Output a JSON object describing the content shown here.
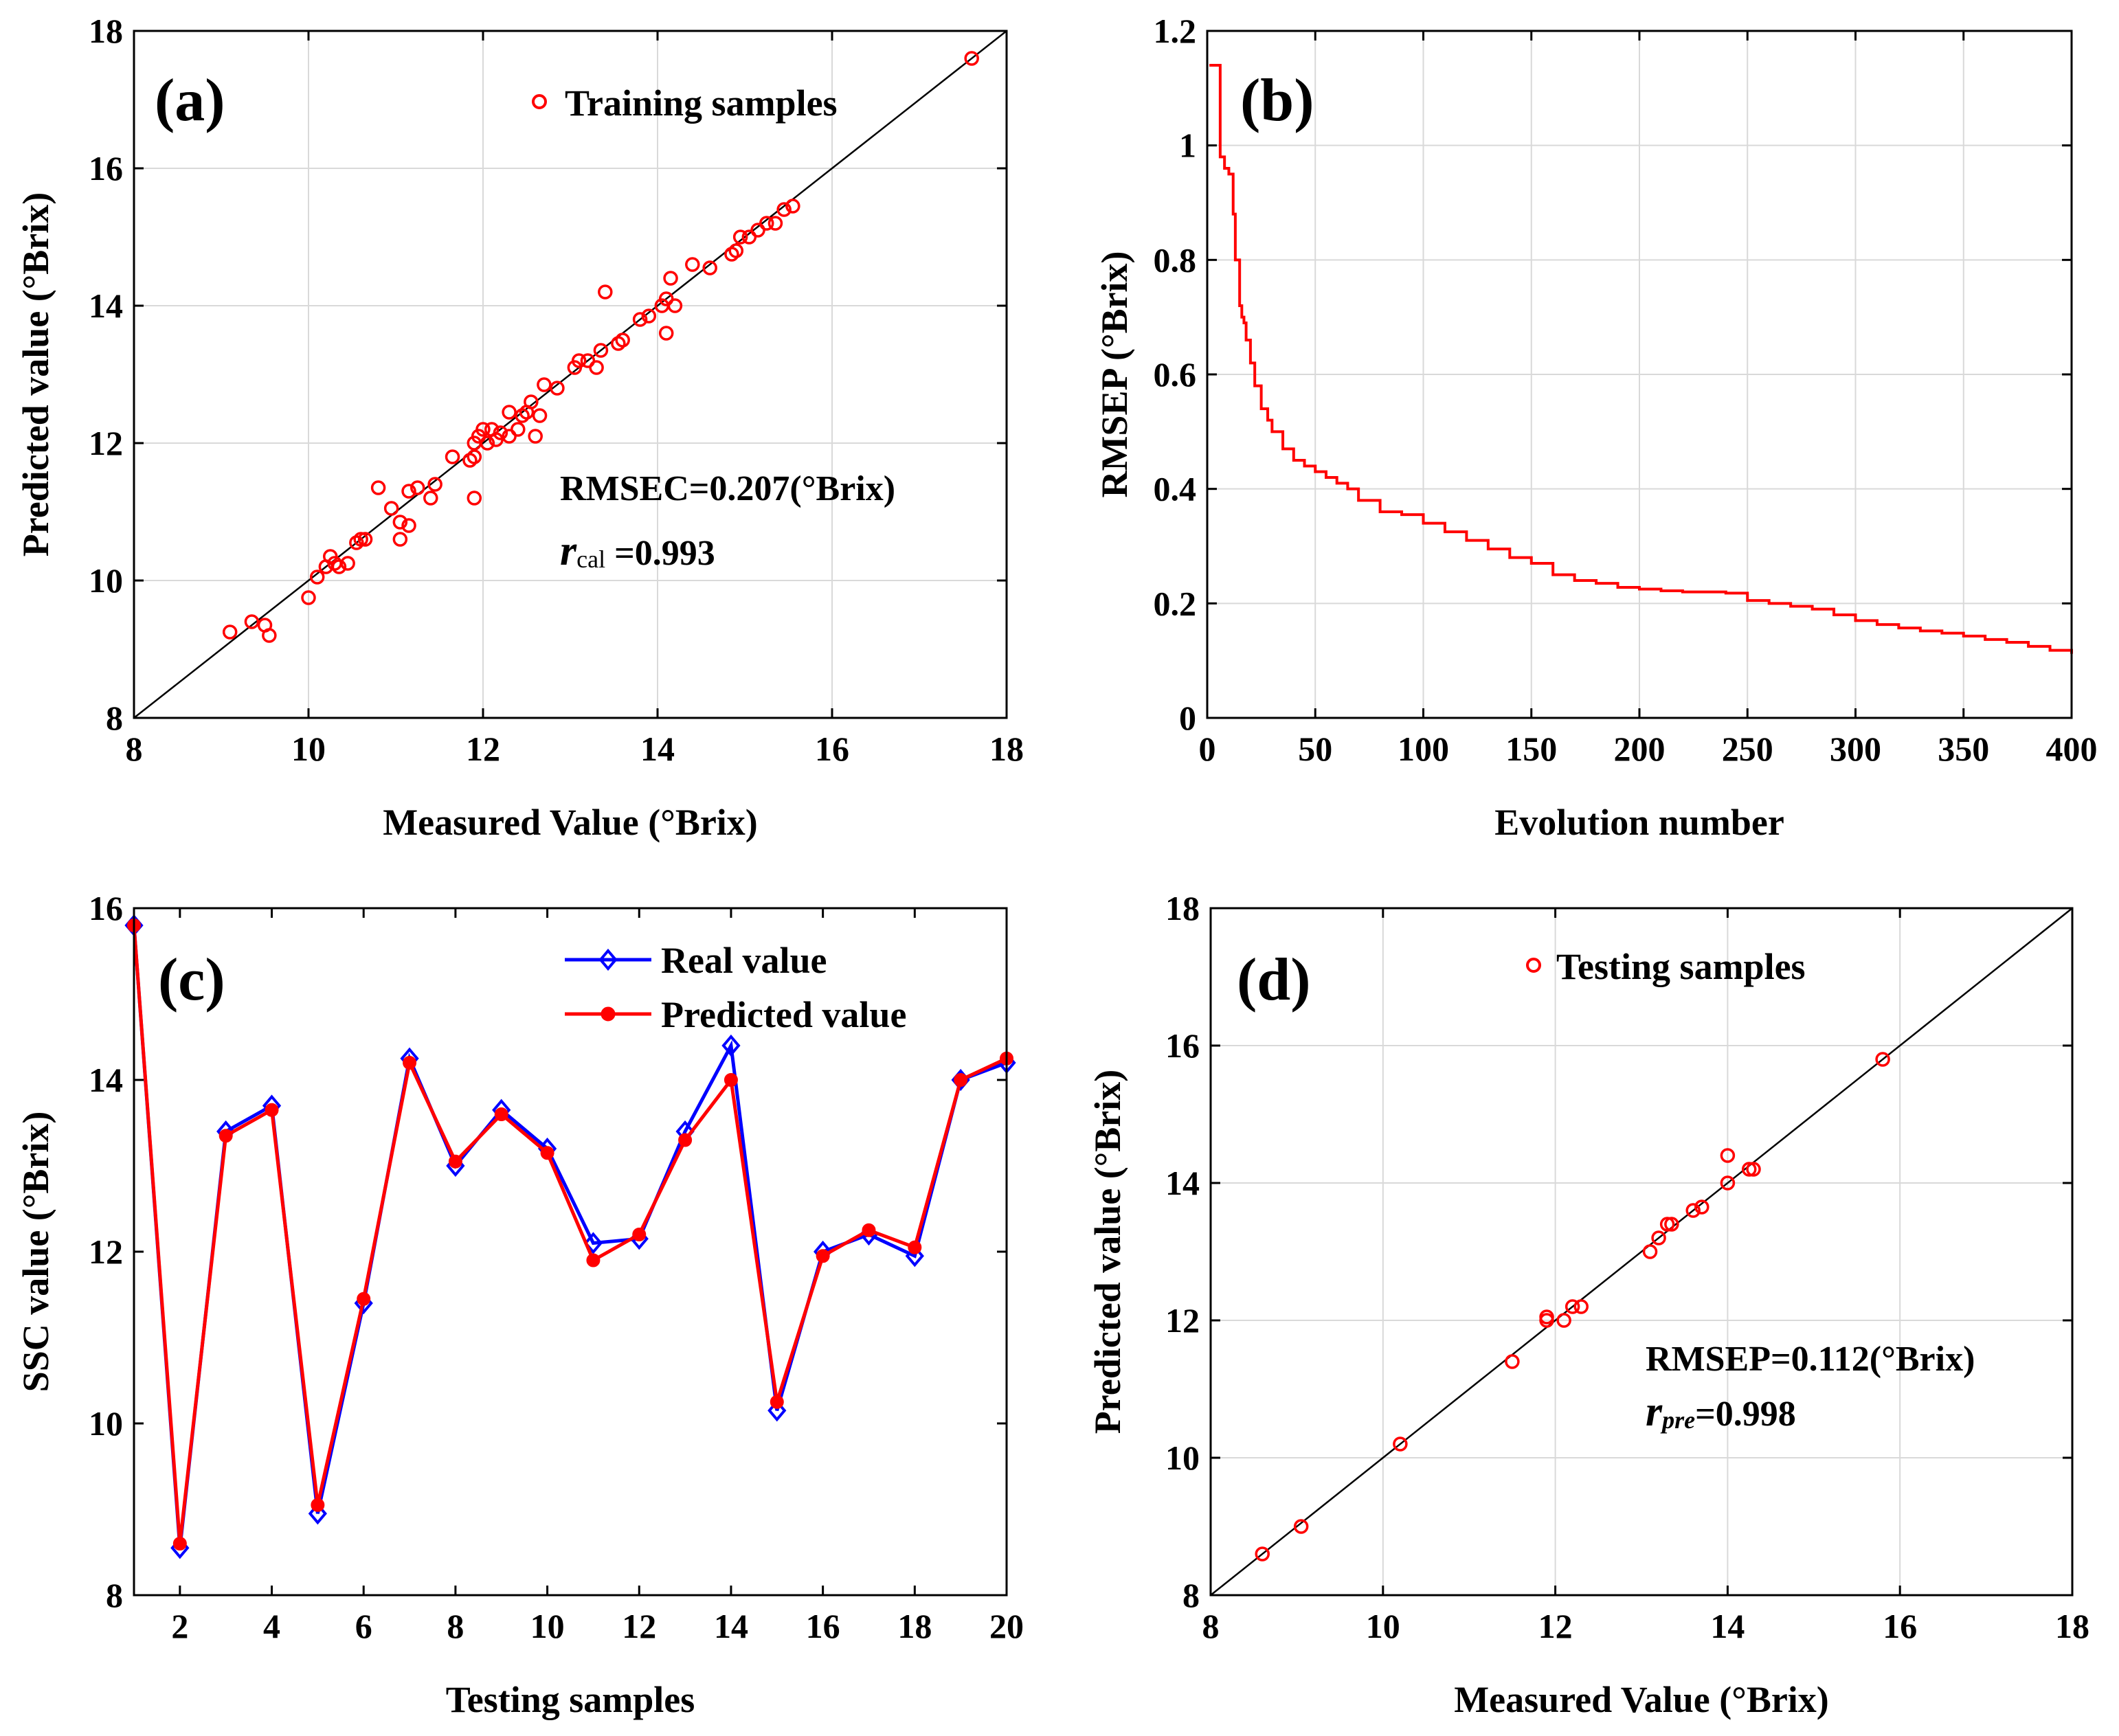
{
  "chart_data": [
    {
      "id": "a",
      "type": "scatter",
      "panel_label": "(a)",
      "xlabel": "Measured Value (°Brix)",
      "ylabel": "Predicted value (°Brix)",
      "xlim": [
        8,
        18
      ],
      "ylim": [
        8,
        18
      ],
      "xticks": [
        8,
        10,
        12,
        14,
        16,
        18
      ],
      "yticks": [
        8,
        10,
        12,
        14,
        16,
        18
      ],
      "grid": true,
      "legend": "Training samples",
      "legend_position": "top-right",
      "annotations": {
        "rmse": "RMSEC=0.207(°Brix)",
        "r_symbol": "r",
        "r_sub": "cal",
        "r_value": " =0.993"
      },
      "reference_line": "y=x",
      "points": [
        [
          9.1,
          9.25
        ],
        [
          9.35,
          9.4
        ],
        [
          9.5,
          9.35
        ],
        [
          9.55,
          9.2
        ],
        [
          10.0,
          9.75
        ],
        [
          10.1,
          10.05
        ],
        [
          10.2,
          10.2
        ],
        [
          10.25,
          10.35
        ],
        [
          10.3,
          10.25
        ],
        [
          10.35,
          10.2
        ],
        [
          10.45,
          10.25
        ],
        [
          10.55,
          10.55
        ],
        [
          10.6,
          10.6
        ],
        [
          10.65,
          10.6
        ],
        [
          10.8,
          11.35
        ],
        [
          10.95,
          11.05
        ],
        [
          11.05,
          10.6
        ],
        [
          11.05,
          10.85
        ],
        [
          11.15,
          10.8
        ],
        [
          11.15,
          11.3
        ],
        [
          11.25,
          11.35
        ],
        [
          11.4,
          11.2
        ],
        [
          11.45,
          11.4
        ],
        [
          11.65,
          11.8
        ],
        [
          11.85,
          11.75
        ],
        [
          11.9,
          11.8
        ],
        [
          11.9,
          12.0
        ],
        [
          11.9,
          11.2
        ],
        [
          11.95,
          12.1
        ],
        [
          12.0,
          12.2
        ],
        [
          12.05,
          12.0
        ],
        [
          12.1,
          12.2
        ],
        [
          12.15,
          12.05
        ],
        [
          12.2,
          12.15
        ],
        [
          12.3,
          12.1
        ],
        [
          12.3,
          12.45
        ],
        [
          12.4,
          12.2
        ],
        [
          12.45,
          12.4
        ],
        [
          12.5,
          12.45
        ],
        [
          12.55,
          12.6
        ],
        [
          12.6,
          12.1
        ],
        [
          12.65,
          12.4
        ],
        [
          12.7,
          12.85
        ],
        [
          12.85,
          12.8
        ],
        [
          13.05,
          13.1
        ],
        [
          13.1,
          13.2
        ],
        [
          13.2,
          13.2
        ],
        [
          13.3,
          13.1
        ],
        [
          13.35,
          13.35
        ],
        [
          13.4,
          14.2
        ],
        [
          13.55,
          13.45
        ],
        [
          13.6,
          13.5
        ],
        [
          13.8,
          13.8
        ],
        [
          13.9,
          13.85
        ],
        [
          14.05,
          14.0
        ],
        [
          14.1,
          13.6
        ],
        [
          14.1,
          14.1
        ],
        [
          14.15,
          14.4
        ],
        [
          14.2,
          14.0
        ],
        [
          14.4,
          14.6
        ],
        [
          14.6,
          14.55
        ],
        [
          14.85,
          14.75
        ],
        [
          14.9,
          14.8
        ],
        [
          14.95,
          15.0
        ],
        [
          15.05,
          15.0
        ],
        [
          15.15,
          15.1
        ],
        [
          15.25,
          15.2
        ],
        [
          15.35,
          15.2
        ],
        [
          15.45,
          15.4
        ],
        [
          15.55,
          15.45
        ],
        [
          17.6,
          17.6
        ]
      ]
    },
    {
      "id": "b",
      "type": "line",
      "panel_label": "(b)",
      "xlabel": "Evolution number",
      "ylabel": "RMSEP (°Brix)",
      "xlim": [
        0,
        400
      ],
      "ylim": [
        0,
        1.2
      ],
      "xticks": [
        0,
        50,
        100,
        150,
        200,
        250,
        300,
        350,
        400
      ],
      "yticks": [
        0,
        0.2,
        0.4,
        0.6,
        0.8,
        1,
        1.2
      ],
      "grid": true,
      "series_color": "#ff0000",
      "x": [
        1,
        5,
        6,
        8,
        10,
        12,
        13,
        15,
        16,
        17,
        18,
        20,
        22,
        25,
        28,
        30,
        35,
        40,
        45,
        50,
        55,
        60,
        65,
        70,
        80,
        90,
        100,
        110,
        120,
        130,
        140,
        150,
        160,
        170,
        180,
        190,
        200,
        210,
        220,
        230,
        240,
        250,
        260,
        270,
        280,
        290,
        300,
        310,
        320,
        330,
        340,
        350,
        360,
        370,
        380,
        390,
        400
      ],
      "y": [
        1.14,
        1.14,
        0.98,
        0.96,
        0.95,
        0.88,
        0.8,
        0.72,
        0.7,
        0.69,
        0.66,
        0.62,
        0.58,
        0.54,
        0.52,
        0.5,
        0.47,
        0.45,
        0.44,
        0.43,
        0.42,
        0.41,
        0.4,
        0.38,
        0.36,
        0.355,
        0.34,
        0.325,
        0.31,
        0.295,
        0.28,
        0.27,
        0.25,
        0.24,
        0.235,
        0.228,
        0.225,
        0.222,
        0.22,
        0.22,
        0.218,
        0.205,
        0.2,
        0.195,
        0.19,
        0.18,
        0.17,
        0.163,
        0.157,
        0.152,
        0.148,
        0.143,
        0.137,
        0.132,
        0.125,
        0.118,
        0.112
      ]
    },
    {
      "id": "c",
      "type": "line",
      "panel_label": "(c)",
      "xlabel": "Testing samples",
      "ylabel": "SSC value (°Brix)",
      "xlim": [
        1,
        20
      ],
      "ylim": [
        8,
        16
      ],
      "xticks": [
        2,
        4,
        6,
        8,
        10,
        12,
        14,
        16,
        18,
        20
      ],
      "yticks": [
        8,
        10,
        12,
        14,
        16
      ],
      "grid": false,
      "legend_position": "top-right",
      "x": [
        1,
        2,
        3,
        4,
        5,
        6,
        7,
        8,
        9,
        10,
        11,
        12,
        13,
        14,
        15,
        16,
        17,
        18,
        19,
        20
      ],
      "series": [
        {
          "name": "Real value",
          "color": "#0000ff",
          "marker": "diamond",
          "values": [
            15.8,
            8.55,
            13.4,
            13.7,
            8.95,
            11.4,
            14.25,
            13.0,
            13.65,
            13.2,
            12.1,
            12.15,
            13.4,
            14.4,
            10.15,
            12.0,
            12.2,
            11.95,
            14.0,
            14.2
          ]
        },
        {
          "name": "Predicted value",
          "color": "#ff0000",
          "marker": "circle",
          "values": [
            15.8,
            8.6,
            13.35,
            13.65,
            9.05,
            11.45,
            14.2,
            13.05,
            13.6,
            13.15,
            11.9,
            12.2,
            13.3,
            14.0,
            10.25,
            11.95,
            12.25,
            12.05,
            14.0,
            14.25
          ]
        }
      ]
    },
    {
      "id": "d",
      "type": "scatter",
      "panel_label": "(d)",
      "xlabel": "Measured Value (°Brix)",
      "ylabel": "Predicted value (°Brix)",
      "xlim": [
        8,
        18
      ],
      "ylim": [
        8,
        18
      ],
      "xticks": [
        8,
        10,
        12,
        14,
        16,
        18
      ],
      "yticks": [
        8,
        10,
        12,
        14,
        16,
        18
      ],
      "grid": true,
      "legend": "Testing samples",
      "legend_position": "top-right",
      "annotations": {
        "rmse": "RMSEP=0.112(°Brix)",
        "r_symbol": "r",
        "r_sub": "pre",
        "r_value": "=0.998"
      },
      "reference_line": "y=x",
      "points": [
        [
          8.6,
          8.6
        ],
        [
          9.05,
          9.0
        ],
        [
          10.2,
          10.2
        ],
        [
          11.5,
          11.4
        ],
        [
          11.9,
          12.0
        ],
        [
          11.9,
          12.05
        ],
        [
          12.1,
          12.0
        ],
        [
          12.2,
          12.2
        ],
        [
          12.3,
          12.2
        ],
        [
          13.1,
          13.0
        ],
        [
          13.2,
          13.2
        ],
        [
          13.3,
          13.4
        ],
        [
          13.35,
          13.4
        ],
        [
          13.6,
          13.6
        ],
        [
          13.7,
          13.65
        ],
        [
          14.0,
          14.4
        ],
        [
          14.0,
          14.0
        ],
        [
          14.25,
          14.2
        ],
        [
          14.3,
          14.2
        ],
        [
          15.8,
          15.8
        ]
      ]
    }
  ]
}
